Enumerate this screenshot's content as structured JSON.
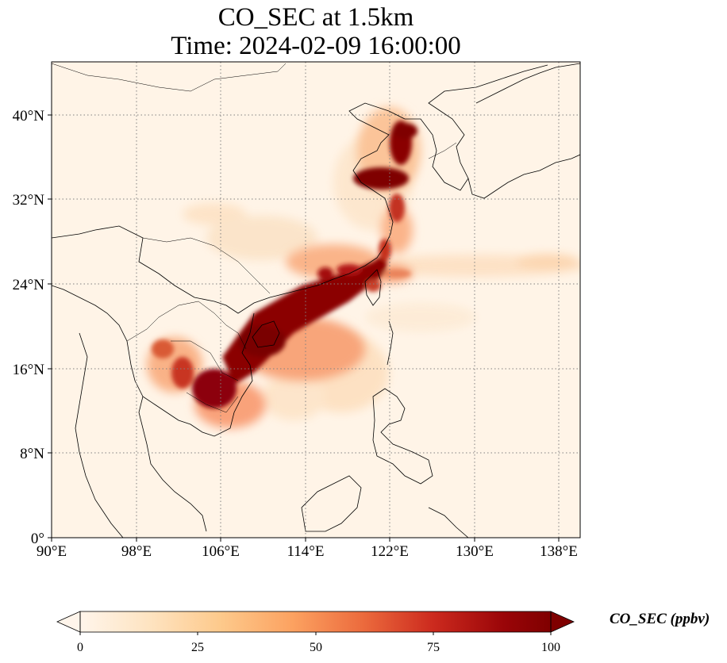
{
  "title_line1": "CO_SEC at 1.5km",
  "title_line2": "Time: 2024-02-09 16:00:00",
  "map": {
    "lon_range": [
      90,
      140
    ],
    "lat_range": [
      0,
      45
    ],
    "x_ticks": [
      "90°E",
      "98°E",
      "106°E",
      "114°E",
      "122°E",
      "130°E",
      "138°E"
    ],
    "y_ticks": [
      "0°",
      "8°N",
      "16°N",
      "24°N",
      "32°N",
      "40°N"
    ],
    "gridlines": true
  },
  "colorbar": {
    "label": "CO_SEC (ppbv)",
    "ticks": [
      "0",
      "25",
      "50",
      "75",
      "100"
    ],
    "range": [
      0,
      100
    ],
    "extend": "both",
    "colormap": [
      "#fff5eb",
      "#fee6ce",
      "#fdd0a2",
      "#fdae6b",
      "#fd8d3c",
      "#f16913",
      "#d94801",
      "#a63603",
      "#7f2704",
      "#6b0000"
    ]
  }
}
